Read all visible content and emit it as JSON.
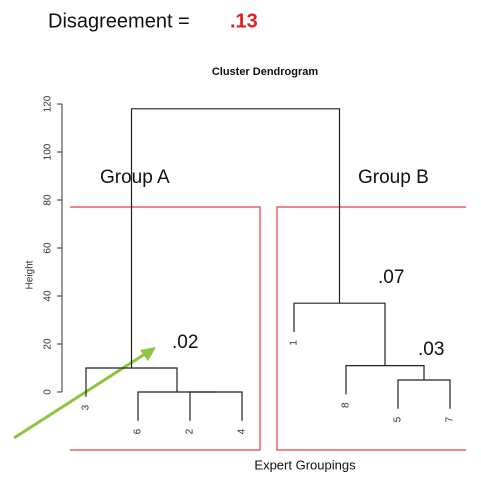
{
  "header": {
    "label": "Disagreement =",
    "value": ".13"
  },
  "chart_data": {
    "type": "dendrogram",
    "title": "Cluster Dendrogram",
    "ylabel": "Height",
    "xlabel": "Expert Groupings",
    "ylim": [
      0,
      120
    ],
    "yticks": [
      0,
      20,
      40,
      60,
      80,
      100,
      120
    ],
    "leaves": [
      "3",
      "6",
      "2",
      "4",
      "1",
      "8",
      "5",
      "7"
    ],
    "merges": [
      {
        "children": [
          2,
          3
        ],
        "height": 0
      },
      {
        "children": [
          1,
          8
        ],
        "height": 0
      },
      {
        "children": [
          0,
          9
        ],
        "height": 10
      },
      {
        "children": [
          6,
          7
        ],
        "height": 5
      },
      {
        "children": [
          5,
          11
        ],
        "height": 11
      },
      {
        "children": [
          4,
          12
        ],
        "height": 37
      },
      {
        "children": [
          10,
          13
        ],
        "height": 118
      }
    ],
    "annotations": [
      "Group A",
      "Group B",
      ".02",
      ".07",
      ".03"
    ]
  }
}
